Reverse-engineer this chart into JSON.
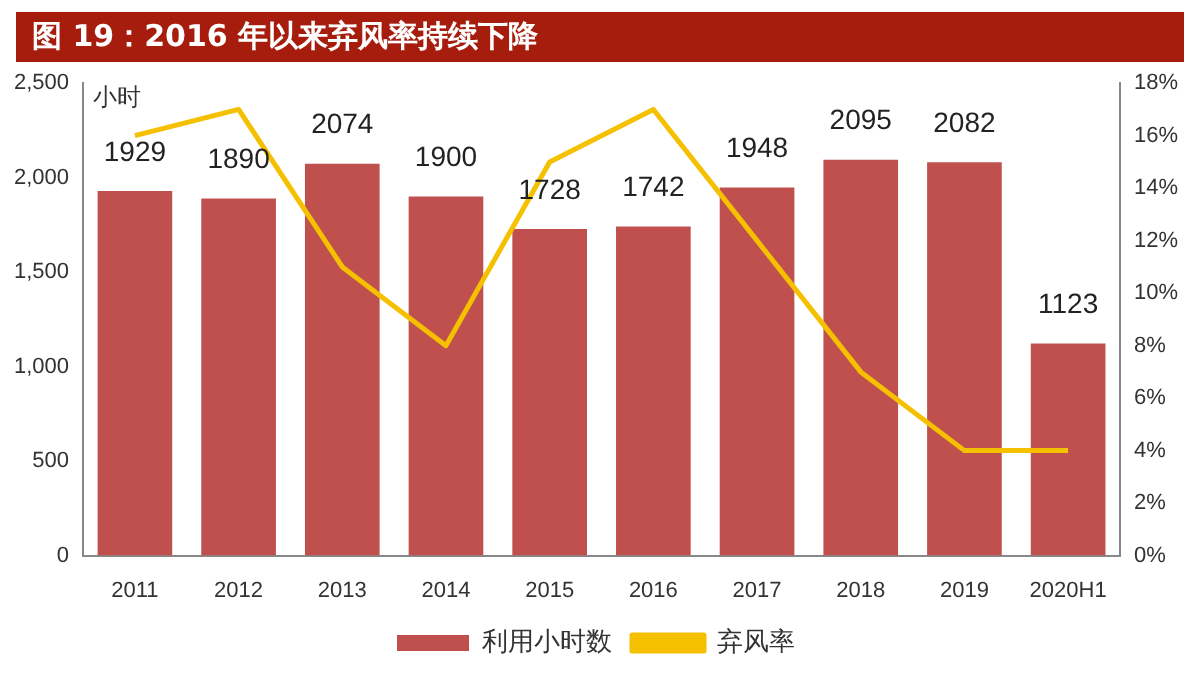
{
  "chart_data": {
    "type": "bar",
    "title": "图 19：2016 年以来弃风率持续下降",
    "ylabel": "小时",
    "categories": [
      "2011",
      "2012",
      "2013",
      "2014",
      "2015",
      "2016",
      "2017",
      "2018",
      "2019",
      "2020H1"
    ],
    "series": [
      {
        "name": "利用小时数",
        "color": "#c0504d",
        "values": [
          1929,
          1890,
          2074,
          1900,
          1728,
          1742,
          1948,
          2095,
          2082,
          1123
        ],
        "value_labels": [
          "1929",
          "1890",
          "2074",
          "1900",
          "1728",
          "1742",
          "1948",
          "2095",
          "2082",
          "1123"
        ]
      },
      {
        "name": "弃风率",
        "type": "line",
        "axis": "y2",
        "color": "#f5c000",
        "values": [
          16,
          17,
          11,
          8,
          15,
          17,
          12,
          7,
          4,
          4
        ]
      }
    ],
    "ylim": [
      0,
      2500
    ],
    "yticks": [
      0,
      500,
      {
        "value": 1000,
        "label": "1,000"
      },
      {
        "value": 1500,
        "label": "1,500"
      },
      {
        "value": 2000,
        "label": "2,000"
      },
      {
        "value": 2500,
        "label": "2,500"
      }
    ],
    "y2lim": [
      0,
      18
    ],
    "y2ticks": [
      {
        "value": 0,
        "label": "0%"
      },
      {
        "value": 2,
        "label": "2%"
      },
      {
        "value": 4,
        "label": "4%"
      },
      {
        "value": 6,
        "label": "6%"
      },
      {
        "value": 8,
        "label": "8%"
      },
      {
        "value": 10,
        "label": "10%"
      },
      {
        "value": 12,
        "label": "12%"
      },
      {
        "value": 14,
        "label": "14%"
      },
      {
        "value": 16,
        "label": "16%"
      },
      {
        "value": 18,
        "label": "18%"
      }
    ],
    "grid": false,
    "legend": "bottom",
    "marker": "none"
  }
}
